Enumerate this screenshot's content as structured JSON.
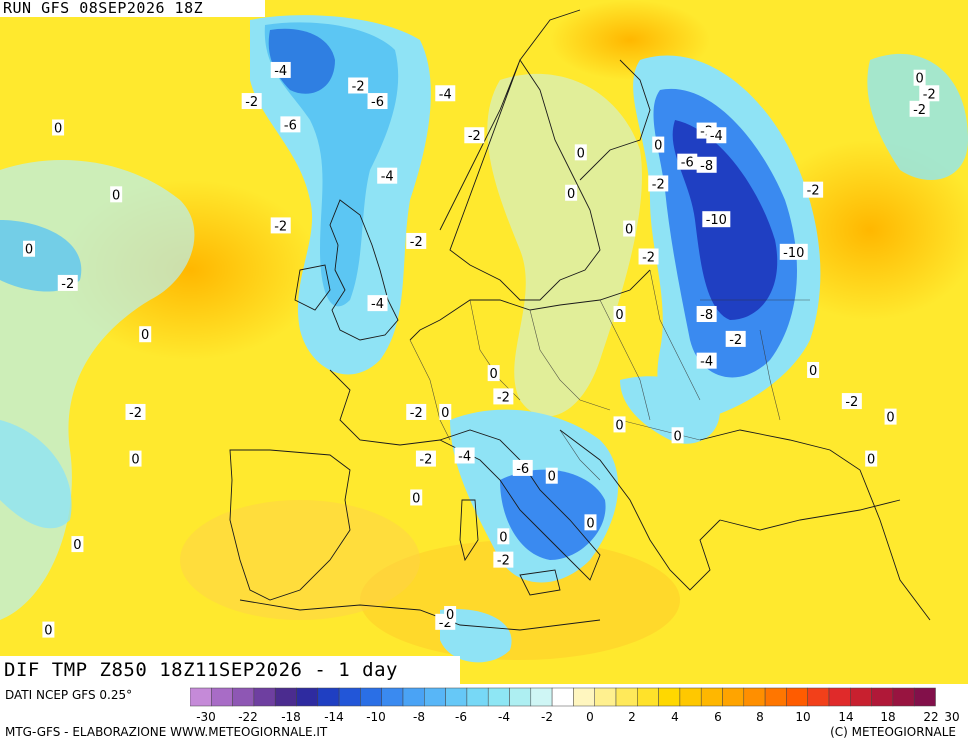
{
  "header": {
    "run": "RUN GFS 08SEP2026 18Z"
  },
  "title": "DIF TMP Z850 18Z11SEP2026 - 1 day",
  "source": "DATI NCEP GFS 0.25°",
  "credits": {
    "left": "MTG-GFS - ELABORAZIONE WWW.METEOGIORNALE.IT",
    "right": "(C) METEOGIORNALE"
  },
  "legend": {
    "tick_labels": [
      "-30",
      "-22",
      "-18",
      "-14",
      "-10",
      "-8",
      "-6",
      "-4",
      "-2",
      "0",
      "2",
      "4",
      "6",
      "8",
      "10",
      "14",
      "18",
      "22",
      "30"
    ],
    "colors": [
      "#c58ad8",
      "#a86cc6",
      "#8e57b4",
      "#6e3fa0",
      "#4b2c8f",
      "#2e2ba0",
      "#1f3fc2",
      "#2256d8",
      "#2a6fe6",
      "#3a8af0",
      "#4aa3f5",
      "#58b6f7",
      "#66c8f7",
      "#77d8f6",
      "#8ee6f4",
      "#aeeff2",
      "#cff6f5",
      "#ffffff",
      "#fff6bf",
      "#fff08f",
      "#ffe95a",
      "#ffe22a",
      "#ffd800",
      "#ffc800",
      "#ffb700",
      "#ffa400",
      "#ff8f00",
      "#ff7600",
      "#ff5c00",
      "#f2401a",
      "#e02a2a",
      "#c8202f",
      "#b01838",
      "#981440",
      "#82104a"
    ]
  },
  "contour_labels": [
    {
      "text": "-4",
      "lat": 67.5,
      "lon": -11
    },
    {
      "text": "-2",
      "lat": 66.5,
      "lon": -3
    },
    {
      "text": "-6",
      "lat": 65.5,
      "lon": -1
    },
    {
      "text": "-2",
      "lat": 65.5,
      "lon": -14
    },
    {
      "text": "-4",
      "lat": 66,
      "lon": 6
    },
    {
      "text": "-6",
      "lat": 64,
      "lon": -10
    },
    {
      "text": "0",
      "lat": 63.8,
      "lon": -34
    },
    {
      "text": "-2",
      "lat": 63.3,
      "lon": 9
    },
    {
      "text": "-4",
      "lat": 60.7,
      "lon": 0
    },
    {
      "text": "0",
      "lat": 59.5,
      "lon": -28
    },
    {
      "text": "-2",
      "lat": 57.5,
      "lon": -11
    },
    {
      "text": "-2",
      "lat": 56.5,
      "lon": 3
    },
    {
      "text": "0",
      "lat": 56,
      "lon": -37
    },
    {
      "text": "-2",
      "lat": 53.8,
      "lon": -33
    },
    {
      "text": "-4",
      "lat": 52.5,
      "lon": -1
    },
    {
      "text": "0",
      "lat": 50.5,
      "lon": -25
    },
    {
      "text": "-2",
      "lat": 45.5,
      "lon": -26
    },
    {
      "text": "0",
      "lat": 42.5,
      "lon": -26
    },
    {
      "text": "0",
      "lat": 37,
      "lon": -32
    },
    {
      "text": "0",
      "lat": 62.2,
      "lon": 20
    },
    {
      "text": "0",
      "lat": 59.6,
      "lon": 19
    },
    {
      "text": "-2",
      "lat": 63.6,
      "lon": 33
    },
    {
      "text": "-4",
      "lat": 63.3,
      "lon": 34
    },
    {
      "text": "0",
      "lat": 62.7,
      "lon": 28
    },
    {
      "text": "-6",
      "lat": 61.6,
      "lon": 31
    },
    {
      "text": "-8",
      "lat": 61.4,
      "lon": 33
    },
    {
      "text": "-2",
      "lat": 60.2,
      "lon": 28
    },
    {
      "text": "-2",
      "lat": 59.8,
      "lon": 44
    },
    {
      "text": "-10",
      "lat": 57.9,
      "lon": 34
    },
    {
      "text": "0",
      "lat": 57.3,
      "lon": 25
    },
    {
      "text": "-2",
      "lat": 55.5,
      "lon": 27
    },
    {
      "text": "-10",
      "lat": 55.8,
      "lon": 42
    },
    {
      "text": "0",
      "lat": 51.8,
      "lon": 24
    },
    {
      "text": "-8",
      "lat": 51.8,
      "lon": 33
    },
    {
      "text": "-2",
      "lat": 50.2,
      "lon": 36
    },
    {
      "text": "-4",
      "lat": 48.8,
      "lon": 33
    },
    {
      "text": "0",
      "lat": 48,
      "lon": 11
    },
    {
      "text": "-2",
      "lat": 46.5,
      "lon": 12
    },
    {
      "text": "-2",
      "lat": 45.5,
      "lon": 3
    },
    {
      "text": "0",
      "lat": 45.5,
      "lon": 6
    },
    {
      "text": "-2",
      "lat": 42.5,
      "lon": 4
    },
    {
      "text": "-4",
      "lat": 42.7,
      "lon": 8
    },
    {
      "text": "-6",
      "lat": 41.9,
      "lon": 14
    },
    {
      "text": "0",
      "lat": 41.4,
      "lon": 17
    },
    {
      "text": "0",
      "lat": 40,
      "lon": 3
    },
    {
      "text": "0",
      "lat": 37.5,
      "lon": 12
    },
    {
      "text": "-2",
      "lat": 36,
      "lon": 12
    },
    {
      "text": "-2",
      "lat": 32,
      "lon": 6
    },
    {
      "text": "0",
      "lat": 32.5,
      "lon": 6.5
    },
    {
      "text": "0",
      "lat": 38.4,
      "lon": 21
    },
    {
      "text": "0",
      "lat": 44.7,
      "lon": 24
    },
    {
      "text": "0",
      "lat": 44,
      "lon": 30
    },
    {
      "text": "0",
      "lat": 48.2,
      "lon": 44
    },
    {
      "text": "-2",
      "lat": 46.2,
      "lon": 48
    },
    {
      "text": "0",
      "lat": 45.2,
      "lon": 52
    },
    {
      "text": "0",
      "lat": 42.5,
      "lon": 50
    },
    {
      "text": "0",
      "lat": 67,
      "lon": 55
    },
    {
      "text": "-2",
      "lat": 66,
      "lon": 56
    },
    {
      "text": "-2",
      "lat": 65,
      "lon": 55
    },
    {
      "text": "0",
      "lat": 31.5,
      "lon": -35
    }
  ]
}
